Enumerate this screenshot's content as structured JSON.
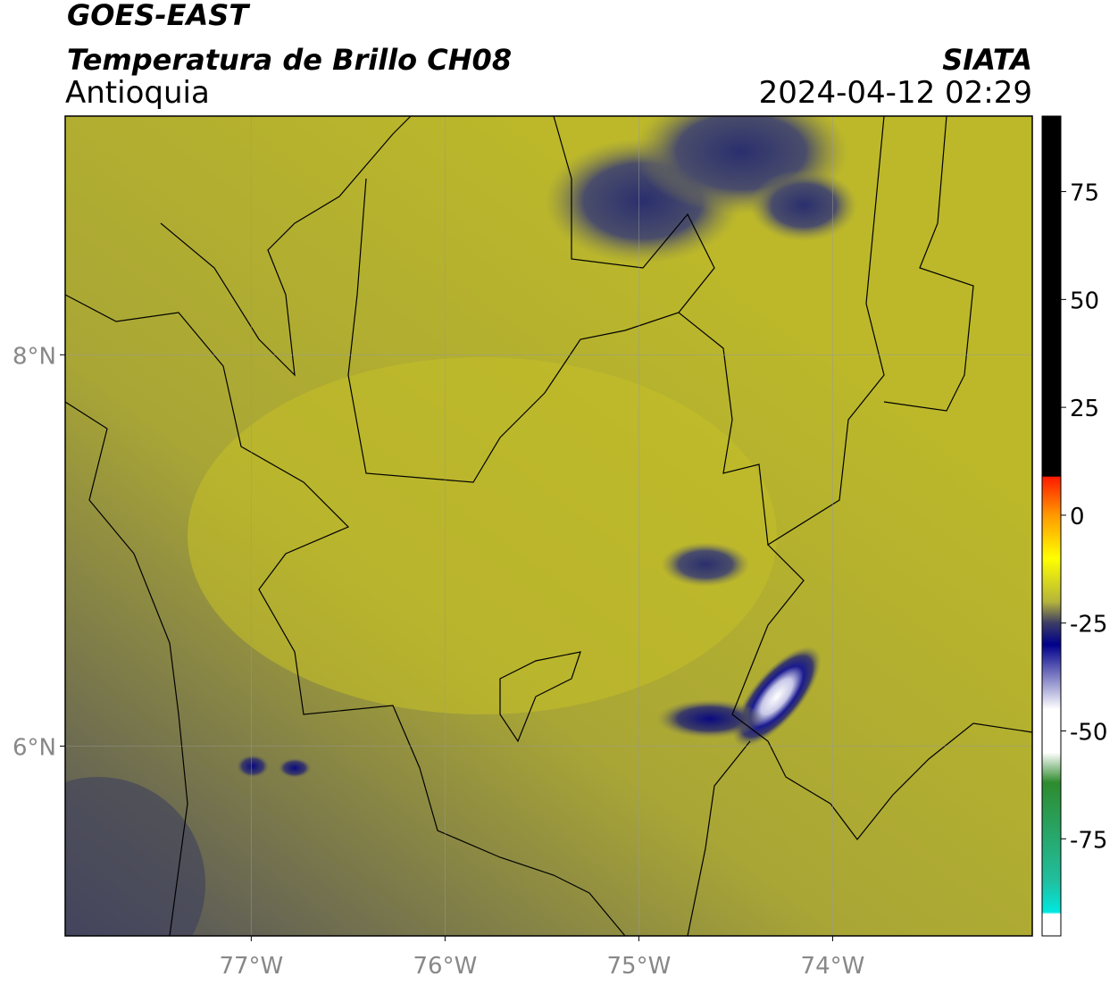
{
  "header": {
    "title": "GOES-EAST",
    "subtitle": "Temperatura de Brillo CH08",
    "region": "Antioquia",
    "source": "SIATA",
    "datetime": "2024-04-12 02:29"
  },
  "map": {
    "xlim": [
      -77.96,
      -72.97
    ],
    "ylim": [
      5.03,
      9.22
    ],
    "xticks": [
      {
        "value": -77,
        "label": "77°W"
      },
      {
        "value": -76,
        "label": "76°W"
      },
      {
        "value": -75,
        "label": "75°W"
      },
      {
        "value": -74,
        "label": "74°W"
      }
    ],
    "yticks": [
      {
        "value": 8,
        "label": "8°N"
      },
      {
        "value": 6,
        "label": "6°N"
      }
    ],
    "grid": true
  },
  "colorbar": {
    "lim": [
      -97.5,
      92.5
    ],
    "ticks": [
      75,
      50,
      25,
      0,
      -25,
      -50,
      -75
    ],
    "stops": [
      {
        "value": 92.5,
        "color": "#000000"
      },
      {
        "value": 9,
        "color": "#000000"
      },
      {
        "value": 8.9,
        "color": "#ff1a00"
      },
      {
        "value": 0,
        "color": "#ff9900"
      },
      {
        "value": -10,
        "color": "#ffff00"
      },
      {
        "value": -20,
        "color": "#b5b53a"
      },
      {
        "value": -25,
        "color": "#3c3c66"
      },
      {
        "value": -30,
        "color": "#00008b"
      },
      {
        "value": -45,
        "color": "#ffffff"
      },
      {
        "value": -55,
        "color": "#ffffff"
      },
      {
        "value": -62,
        "color": "#2e8b2e"
      },
      {
        "value": -85,
        "color": "#20c0a0"
      },
      {
        "value": -92,
        "color": "#00e8e0"
      },
      {
        "value": -92.5,
        "color": "#ffffff"
      },
      {
        "value": -97.5,
        "color": "#ffffff"
      }
    ]
  }
}
